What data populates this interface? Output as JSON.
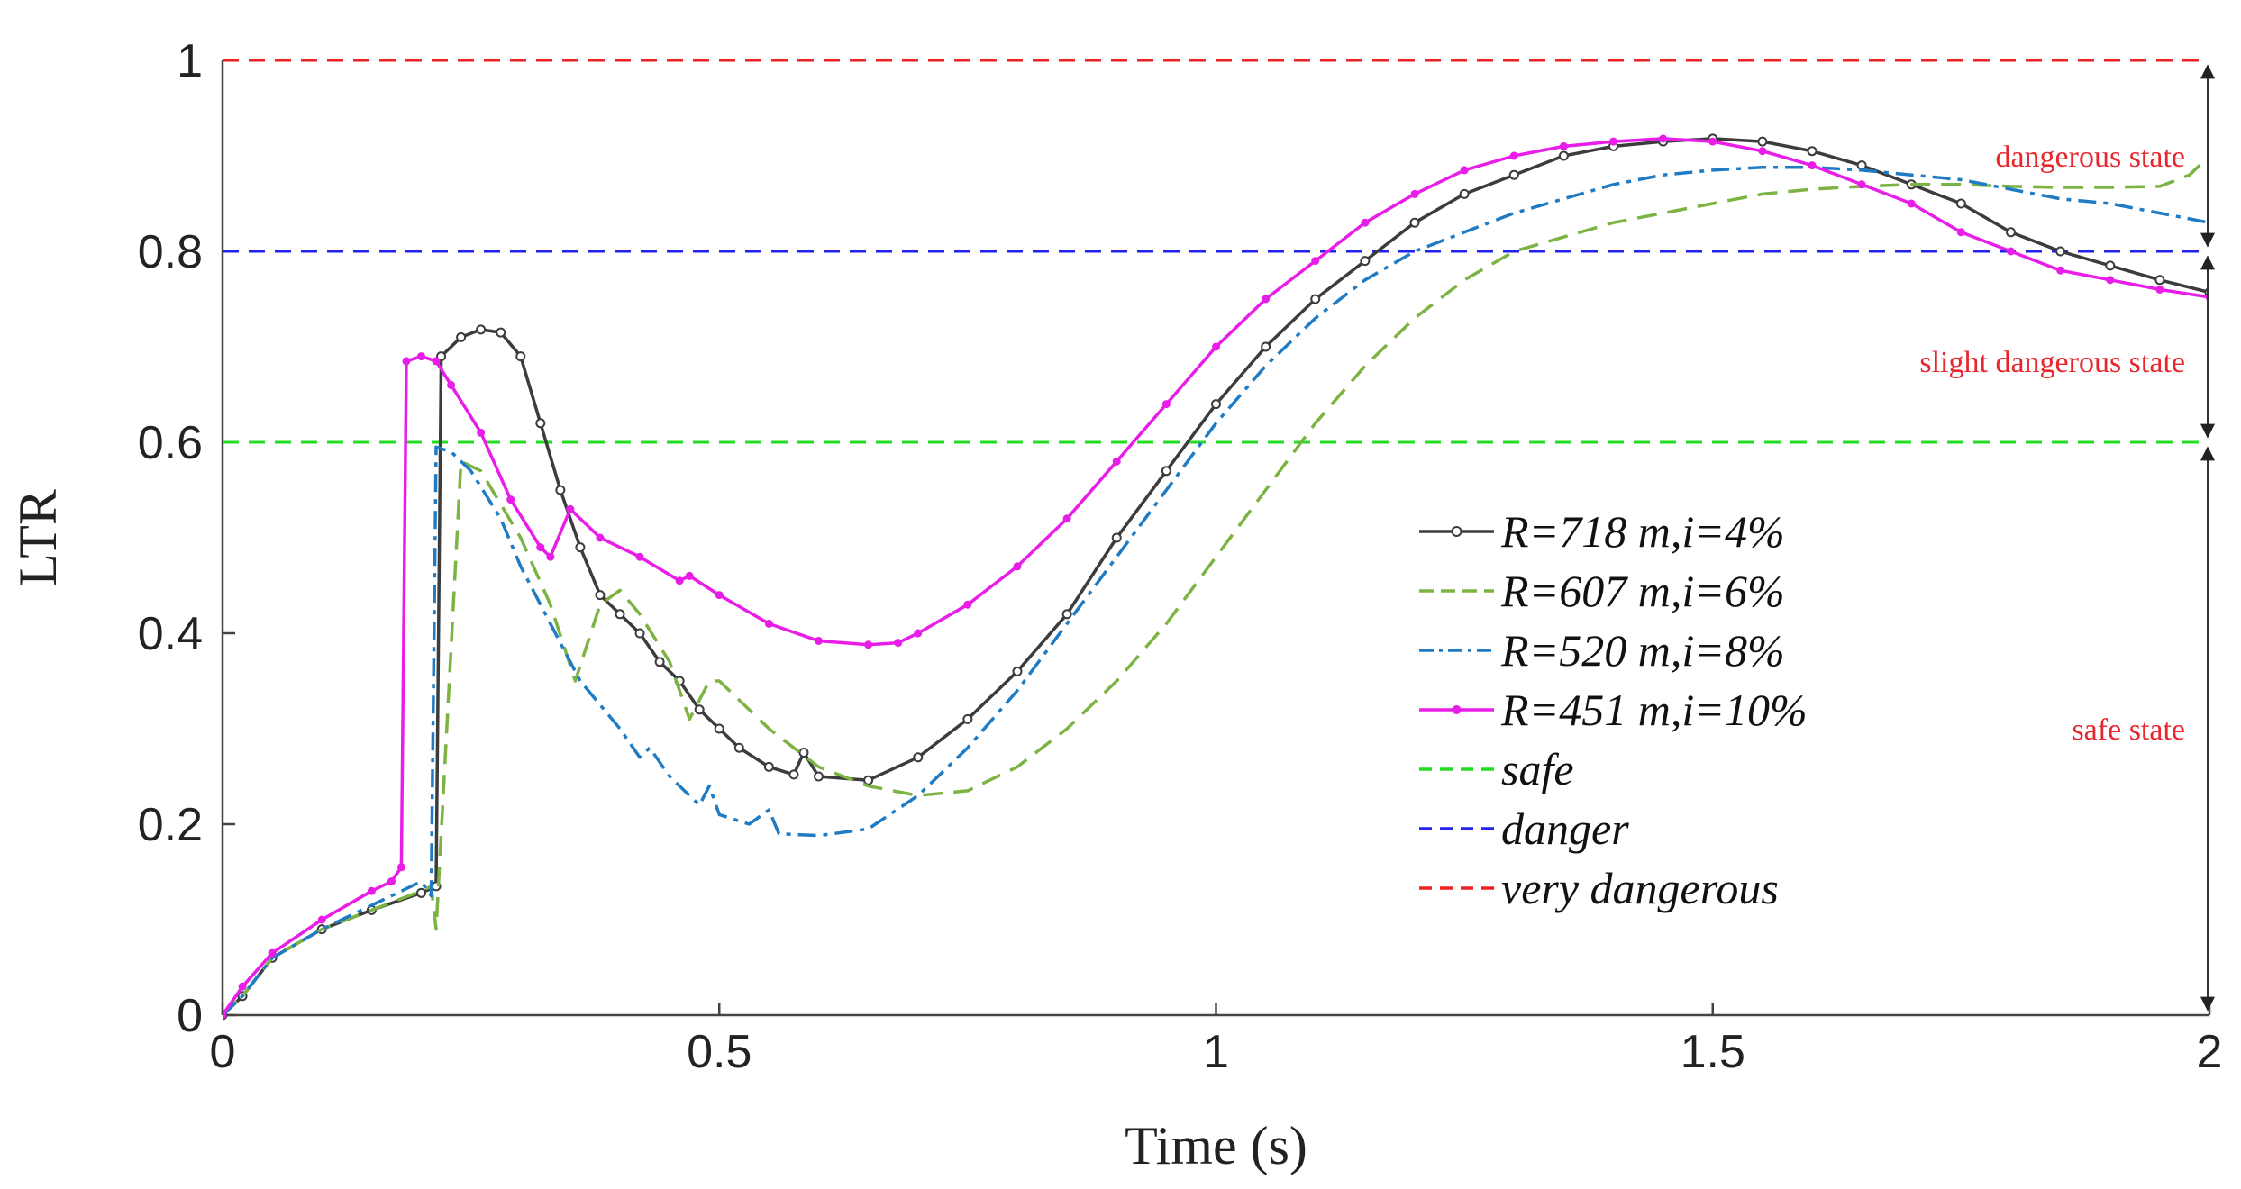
{
  "chart_data": {
    "type": "line",
    "title": "",
    "xlabel": "Time (s)",
    "ylabel": "LTR",
    "xlim": [
      0,
      2
    ],
    "ylim": [
      0,
      1
    ],
    "xticks": [
      0,
      0.5,
      1,
      1.5,
      2
    ],
    "xtick_labels": [
      "0",
      "0.5",
      "1",
      "1.5",
      "2"
    ],
    "yticks": [
      0,
      0.2,
      0.4,
      0.6,
      0.8,
      1
    ],
    "ytick_labels": [
      "0",
      "0.2",
      "0.4",
      "0.6",
      "0.8",
      "1"
    ],
    "grid": false,
    "legend_position": "center-right",
    "series": [
      {
        "name": "R=718 m,i=4%",
        "color": "#3c3c3c",
        "style": "solid-circle-markers",
        "points": [
          [
            0,
            0
          ],
          [
            0.02,
            0.02
          ],
          [
            0.05,
            0.06
          ],
          [
            0.1,
            0.09
          ],
          [
            0.15,
            0.11
          ],
          [
            0.2,
            0.128
          ],
          [
            0.215,
            0.135
          ],
          [
            0.22,
            0.69
          ],
          [
            0.24,
            0.71
          ],
          [
            0.26,
            0.718
          ],
          [
            0.28,
            0.715
          ],
          [
            0.3,
            0.69
          ],
          [
            0.32,
            0.62
          ],
          [
            0.34,
            0.55
          ],
          [
            0.36,
            0.49
          ],
          [
            0.38,
            0.44
          ],
          [
            0.4,
            0.42
          ],
          [
            0.42,
            0.4
          ],
          [
            0.44,
            0.37
          ],
          [
            0.46,
            0.35
          ],
          [
            0.48,
            0.32
          ],
          [
            0.5,
            0.3
          ],
          [
            0.52,
            0.28
          ],
          [
            0.55,
            0.26
          ],
          [
            0.575,
            0.252
          ],
          [
            0.585,
            0.275
          ],
          [
            0.6,
            0.25
          ],
          [
            0.65,
            0.246
          ],
          [
            0.7,
            0.27
          ],
          [
            0.75,
            0.31
          ],
          [
            0.8,
            0.36
          ],
          [
            0.85,
            0.42
          ],
          [
            0.9,
            0.5
          ],
          [
            0.95,
            0.57
          ],
          [
            1.0,
            0.64
          ],
          [
            1.05,
            0.7
          ],
          [
            1.1,
            0.75
          ],
          [
            1.15,
            0.79
          ],
          [
            1.2,
            0.83
          ],
          [
            1.25,
            0.86
          ],
          [
            1.3,
            0.88
          ],
          [
            1.35,
            0.9
          ],
          [
            1.4,
            0.91
          ],
          [
            1.45,
            0.915
          ],
          [
            1.5,
            0.918
          ],
          [
            1.55,
            0.915
          ],
          [
            1.6,
            0.905
          ],
          [
            1.65,
            0.89
          ],
          [
            1.7,
            0.87
          ],
          [
            1.75,
            0.85
          ],
          [
            1.8,
            0.82
          ],
          [
            1.85,
            0.8
          ],
          [
            1.9,
            0.785
          ],
          [
            1.95,
            0.77
          ],
          [
            2.0,
            0.757
          ]
        ]
      },
      {
        "name": "R=607 m,i=6%",
        "color": "#7cb342",
        "style": "dashed",
        "points": [
          [
            0,
            0
          ],
          [
            0.02,
            0.02
          ],
          [
            0.05,
            0.06
          ],
          [
            0.1,
            0.09
          ],
          [
            0.15,
            0.11
          ],
          [
            0.2,
            0.13
          ],
          [
            0.21,
            0.135
          ],
          [
            0.215,
            0.09
          ],
          [
            0.24,
            0.58
          ],
          [
            0.26,
            0.57
          ],
          [
            0.3,
            0.5
          ],
          [
            0.33,
            0.43
          ],
          [
            0.355,
            0.35
          ],
          [
            0.38,
            0.43
          ],
          [
            0.4,
            0.445
          ],
          [
            0.42,
            0.42
          ],
          [
            0.45,
            0.37
          ],
          [
            0.47,
            0.31
          ],
          [
            0.49,
            0.35
          ],
          [
            0.5,
            0.35
          ],
          [
            0.55,
            0.3
          ],
          [
            0.6,
            0.26
          ],
          [
            0.65,
            0.24
          ],
          [
            0.7,
            0.23
          ],
          [
            0.75,
            0.235
          ],
          [
            0.8,
            0.26
          ],
          [
            0.85,
            0.3
          ],
          [
            0.9,
            0.35
          ],
          [
            0.95,
            0.41
          ],
          [
            1.0,
            0.48
          ],
          [
            1.05,
            0.55
          ],
          [
            1.1,
            0.62
          ],
          [
            1.15,
            0.68
          ],
          [
            1.2,
            0.73
          ],
          [
            1.25,
            0.77
          ],
          [
            1.3,
            0.8
          ],
          [
            1.35,
            0.815
          ],
          [
            1.4,
            0.83
          ],
          [
            1.45,
            0.84
          ],
          [
            1.5,
            0.85
          ],
          [
            1.55,
            0.86
          ],
          [
            1.6,
            0.865
          ],
          [
            1.65,
            0.868
          ],
          [
            1.7,
            0.87
          ],
          [
            1.75,
            0.87
          ],
          [
            1.8,
            0.868
          ],
          [
            1.85,
            0.867
          ],
          [
            1.9,
            0.867
          ],
          [
            1.95,
            0.868
          ],
          [
            1.98,
            0.88
          ],
          [
            2.0,
            0.9
          ]
        ]
      },
      {
        "name": "R=520 m,i=8%",
        "color": "#1f7cc4",
        "style": "dash-dot",
        "points": [
          [
            0,
            0
          ],
          [
            0.02,
            0.02
          ],
          [
            0.05,
            0.06
          ],
          [
            0.1,
            0.09
          ],
          [
            0.15,
            0.115
          ],
          [
            0.2,
            0.14
          ],
          [
            0.21,
            0.125
          ],
          [
            0.215,
            0.595
          ],
          [
            0.23,
            0.59
          ],
          [
            0.25,
            0.57
          ],
          [
            0.28,
            0.52
          ],
          [
            0.3,
            0.47
          ],
          [
            0.33,
            0.41
          ],
          [
            0.36,
            0.35
          ],
          [
            0.4,
            0.3
          ],
          [
            0.42,
            0.27
          ],
          [
            0.43,
            0.28
          ],
          [
            0.45,
            0.25
          ],
          [
            0.48,
            0.22
          ],
          [
            0.49,
            0.24
          ],
          [
            0.5,
            0.21
          ],
          [
            0.53,
            0.2
          ],
          [
            0.55,
            0.215
          ],
          [
            0.56,
            0.19
          ],
          [
            0.6,
            0.188
          ],
          [
            0.65,
            0.195
          ],
          [
            0.7,
            0.23
          ],
          [
            0.75,
            0.28
          ],
          [
            0.8,
            0.34
          ],
          [
            0.85,
            0.41
          ],
          [
            0.9,
            0.48
          ],
          [
            0.95,
            0.55
          ],
          [
            1.0,
            0.62
          ],
          [
            1.05,
            0.68
          ],
          [
            1.1,
            0.73
          ],
          [
            1.15,
            0.77
          ],
          [
            1.2,
            0.8
          ],
          [
            1.25,
            0.82
          ],
          [
            1.3,
            0.84
          ],
          [
            1.35,
            0.855
          ],
          [
            1.4,
            0.87
          ],
          [
            1.45,
            0.88
          ],
          [
            1.5,
            0.885
          ],
          [
            1.55,
            0.888
          ],
          [
            1.6,
            0.888
          ],
          [
            1.65,
            0.885
          ],
          [
            1.7,
            0.88
          ],
          [
            1.75,
            0.875
          ],
          [
            1.8,
            0.865
          ],
          [
            1.85,
            0.855
          ],
          [
            1.9,
            0.85
          ],
          [
            1.95,
            0.84
          ],
          [
            2.0,
            0.83
          ]
        ]
      },
      {
        "name": "R=451 m,i=10%",
        "color": "#e81ee8",
        "style": "solid-dot-markers",
        "points": [
          [
            0,
            0
          ],
          [
            0.02,
            0.03
          ],
          [
            0.05,
            0.065
          ],
          [
            0.1,
            0.1
          ],
          [
            0.15,
            0.13
          ],
          [
            0.17,
            0.14
          ],
          [
            0.18,
            0.155
          ],
          [
            0.185,
            0.685
          ],
          [
            0.2,
            0.69
          ],
          [
            0.215,
            0.685
          ],
          [
            0.23,
            0.66
          ],
          [
            0.26,
            0.61
          ],
          [
            0.29,
            0.54
          ],
          [
            0.32,
            0.49
          ],
          [
            0.33,
            0.48
          ],
          [
            0.35,
            0.53
          ],
          [
            0.38,
            0.5
          ],
          [
            0.42,
            0.48
          ],
          [
            0.46,
            0.455
          ],
          [
            0.47,
            0.46
          ],
          [
            0.5,
            0.44
          ],
          [
            0.55,
            0.41
          ],
          [
            0.6,
            0.392
          ],
          [
            0.65,
            0.388
          ],
          [
            0.68,
            0.39
          ],
          [
            0.7,
            0.4
          ],
          [
            0.75,
            0.43
          ],
          [
            0.8,
            0.47
          ],
          [
            0.85,
            0.52
          ],
          [
            0.9,
            0.58
          ],
          [
            0.95,
            0.64
          ],
          [
            1.0,
            0.7
          ],
          [
            1.05,
            0.75
          ],
          [
            1.1,
            0.79
          ],
          [
            1.15,
            0.83
          ],
          [
            1.2,
            0.86
          ],
          [
            1.25,
            0.885
          ],
          [
            1.3,
            0.9
          ],
          [
            1.35,
            0.91
          ],
          [
            1.4,
            0.915
          ],
          [
            1.45,
            0.918
          ],
          [
            1.5,
            0.915
          ],
          [
            1.55,
            0.905
          ],
          [
            1.6,
            0.89
          ],
          [
            1.65,
            0.87
          ],
          [
            1.7,
            0.85
          ],
          [
            1.75,
            0.82
          ],
          [
            1.8,
            0.8
          ],
          [
            1.85,
            0.78
          ],
          [
            1.9,
            0.77
          ],
          [
            1.95,
            0.76
          ],
          [
            2.0,
            0.752
          ]
        ]
      }
    ],
    "thresholds": [
      {
        "name": "safe",
        "value": 0.6,
        "color": "#22dd22"
      },
      {
        "name": "danger",
        "value": 0.8,
        "color": "#2222ee"
      },
      {
        "name": "very dangerous",
        "value": 1.0,
        "color": "#ee2222"
      }
    ],
    "zones": [
      {
        "label": "dangerous state",
        "from": 0.8,
        "to": 1.0
      },
      {
        "label": "slight dangerous state",
        "from": 0.6,
        "to": 0.8
      },
      {
        "label": "safe state",
        "from": 0.0,
        "to": 0.6
      }
    ],
    "legend_entries": [
      "R=718 m,i=4%",
      "R=607 m,i=6%",
      "R=520 m,i=8%",
      "R=451 m,i=10%",
      "safe",
      "danger",
      "very dangerous"
    ]
  }
}
